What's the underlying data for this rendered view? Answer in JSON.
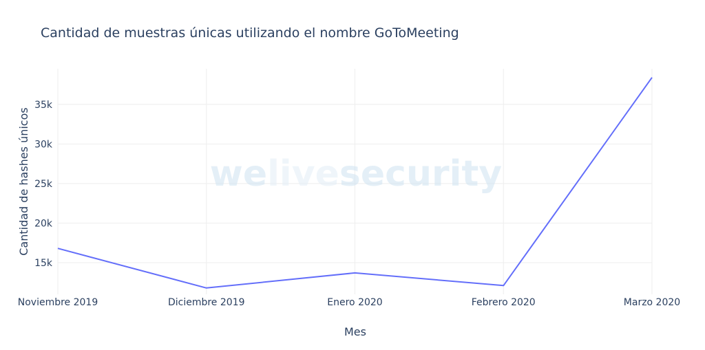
{
  "chart_data": {
    "type": "line",
    "title": "Cantidad de muestras únicas utilizando el nombre GoToMeeting",
    "xlabel": "Mes",
    "ylabel": "Cantidad de hashes únicos",
    "categories": [
      "Noviembre 2019",
      "Diciembre 2019",
      "Enero 2020",
      "Febrero 2020",
      "Marzo 2020"
    ],
    "series": [
      {
        "values": [
          16800,
          11800,
          13700,
          12100,
          38400
        ]
      }
    ],
    "ylim": [
      11000,
      39500
    ],
    "yticks": [
      15000,
      20000,
      25000,
      30000,
      35000
    ],
    "ytick_labels": [
      "15k",
      "20k",
      "25k",
      "30k",
      "35k"
    ],
    "grid": true,
    "line_color": "#636efa"
  },
  "watermark": {
    "part1": "we",
    "part2": "live",
    "part3": "security"
  }
}
